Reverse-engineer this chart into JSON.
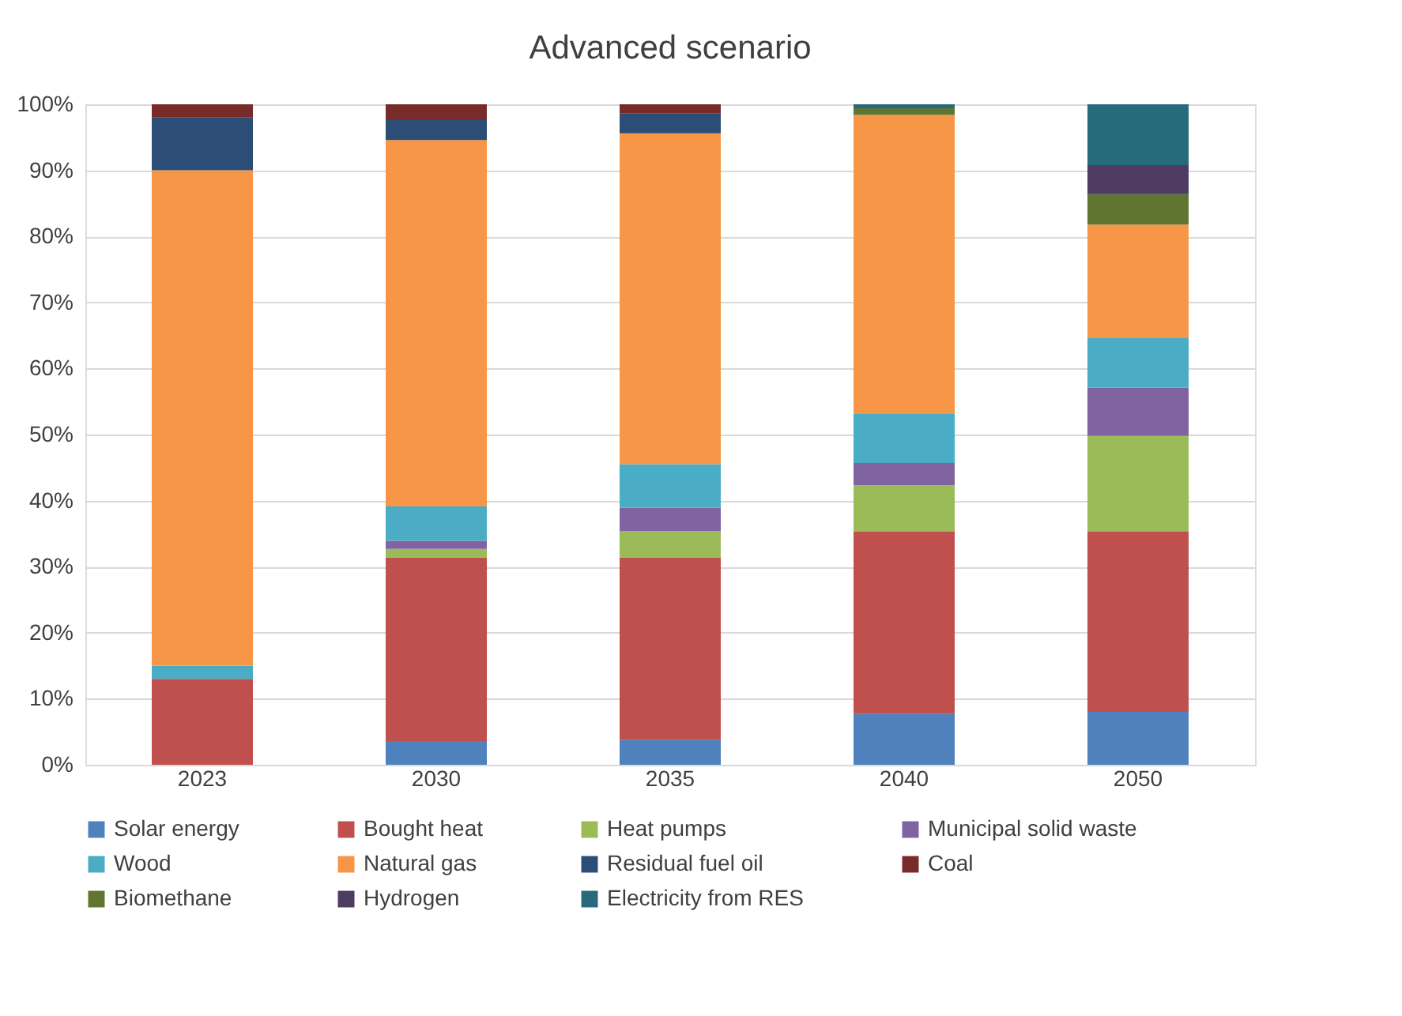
{
  "chart_data": {
    "type": "bar",
    "title": "Advanced scenario",
    "stacked": true,
    "categories": [
      "2023",
      "2030",
      "2035",
      "2040",
      "2050"
    ],
    "series": [
      {
        "name": "Solar energy",
        "color": "#4f81bd",
        "values": [
          0,
          3.6,
          3.8,
          7.7,
          8.0
        ]
      },
      {
        "name": "Bought heat",
        "color": "#c0504d",
        "values": [
          13.0,
          27.8,
          27.6,
          27.6,
          27.3
        ]
      },
      {
        "name": "Heat pumps",
        "color": "#9bbb59",
        "values": [
          0,
          1.3,
          4.0,
          7.0,
          14.5
        ]
      },
      {
        "name": "Municipal solid waste",
        "color": "#8064a2",
        "values": [
          0,
          1.2,
          3.5,
          3.4,
          7.3
        ]
      },
      {
        "name": "Wood",
        "color": "#4bacc6",
        "values": [
          2.0,
          5.2,
          6.6,
          7.4,
          7.5
        ]
      },
      {
        "name": "Natural gas",
        "color": "#f79646",
        "values": [
          75.0,
          55.5,
          50.1,
          45.3,
          17.2
        ]
      },
      {
        "name": "Residual fuel oil",
        "color": "#2c4d75",
        "values": [
          8.0,
          3.0,
          3.0,
          0,
          0
        ]
      },
      {
        "name": "Coal",
        "color": "#772c2a",
        "values": [
          2.0,
          2.4,
          1.4,
          0,
          0
        ]
      },
      {
        "name": "Biomethane",
        "color": "#5f7530",
        "values": [
          0,
          0,
          0,
          1.0,
          4.6
        ]
      },
      {
        "name": "Hydrogen",
        "color": "#4d3b62",
        "values": [
          0,
          0,
          0,
          0,
          4.4
        ]
      },
      {
        "name": "Electricity from RES",
        "color": "#276a7c",
        "values": [
          0,
          0,
          0,
          0.6,
          9.2
        ]
      }
    ],
    "ylim": [
      0,
      100
    ],
    "yticks": [
      {
        "value": 0,
        "label": "0%"
      },
      {
        "value": 10,
        "label": "10%"
      },
      {
        "value": 20,
        "label": "20%"
      },
      {
        "value": 30,
        "label": "30%"
      },
      {
        "value": 40,
        "label": "40%"
      },
      {
        "value": 50,
        "label": "50%"
      },
      {
        "value": 60,
        "label": "60%"
      },
      {
        "value": 70,
        "label": "70%"
      },
      {
        "value": 80,
        "label": "80%"
      },
      {
        "value": 90,
        "label": "90%"
      },
      {
        "value": 100,
        "label": "100%"
      }
    ],
    "grid": "y",
    "legend": "bottom"
  }
}
